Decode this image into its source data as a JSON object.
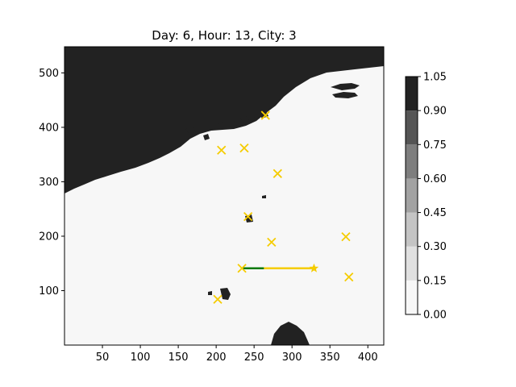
{
  "title": "Day: 6, Hour: 13, City: 3",
  "colors": {
    "land": "#222222",
    "sea": "#f7f7f7",
    "city_marker": "#f5cc00",
    "route_done": "#0a7a0a",
    "route_pending": "#f5cc00"
  },
  "chart_data": {
    "type": "map",
    "xlim": [
      0,
      421
    ],
    "ylim": [
      0,
      548
    ],
    "x_ticks": [
      50,
      100,
      150,
      200,
      250,
      300,
      350,
      400
    ],
    "y_ticks": [
      100,
      200,
      300,
      400,
      500
    ],
    "cities": [
      {
        "x": 265,
        "y": 422
      },
      {
        "x": 207,
        "y": 358
      },
      {
        "x": 237,
        "y": 362
      },
      {
        "x": 281,
        "y": 315
      },
      {
        "x": 242,
        "y": 236
      },
      {
        "x": 273,
        "y": 189
      },
      {
        "x": 371,
        "y": 199
      },
      {
        "x": 234,
        "y": 141
      },
      {
        "x": 375,
        "y": 125
      },
      {
        "x": 202,
        "y": 84
      }
    ],
    "current_position": {
      "x": 329,
      "y": 141
    },
    "route_segments": [
      {
        "status": "done",
        "from": [
          234,
          141
        ],
        "to": [
          263,
          141
        ]
      },
      {
        "status": "pending",
        "from": [
          263,
          141
        ],
        "to": [
          329,
          141
        ]
      }
    ],
    "colorbar": {
      "ticks": [
        "0.00",
        "0.15",
        "0.30",
        "0.45",
        "0.60",
        "0.75",
        "0.90",
        "1.05"
      ],
      "levels": [
        "#f7f7f7",
        "#e0e0e0",
        "#c4c4c4",
        "#a2a2a2",
        "#7e7e7e",
        "#555555",
        "#222222"
      ]
    }
  }
}
